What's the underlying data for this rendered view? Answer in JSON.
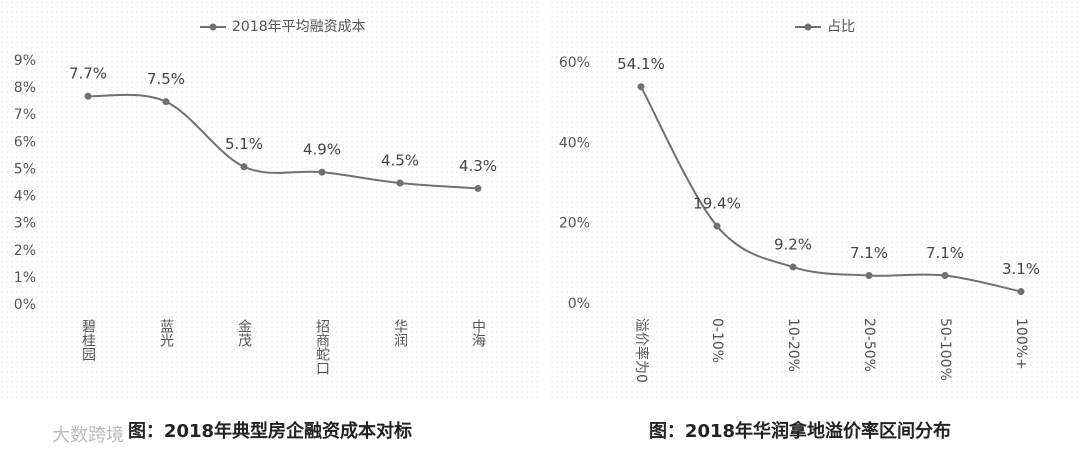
{
  "chart_data": [
    {
      "type": "line",
      "legend_position": "top",
      "categories": [
        "碧桂园",
        "蓝光",
        "金茂",
        "招商蛇口",
        "华润",
        "中海"
      ],
      "series": [
        {
          "name": "2018年平均融资成本",
          "color": "#707070",
          "values": [
            7.7,
            7.5,
            5.1,
            4.9,
            4.5,
            4.3
          ],
          "value_labels": [
            "7.7%",
            "7.5%",
            "5.1%",
            "4.9%",
            "4.5%",
            "4.3%"
          ]
        }
      ],
      "ylim": [
        0,
        9
      ],
      "yticks": [
        {
          "value": 0,
          "label": "0%"
        },
        {
          "value": 1,
          "label": "1%"
        },
        {
          "value": 2,
          "label": "2%"
        },
        {
          "value": 3,
          "label": "3%"
        },
        {
          "value": 4,
          "label": "4%"
        },
        {
          "value": 5,
          "label": "5%"
        },
        {
          "value": 6,
          "label": "6%"
        },
        {
          "value": 7,
          "label": "7%"
        },
        {
          "value": 8,
          "label": "8%"
        },
        {
          "value": 9,
          "label": "9%"
        }
      ],
      "grid": false,
      "caption": "图：2018年典型房企融资成本对标"
    },
    {
      "type": "line",
      "legend_position": "top",
      "categories": [
        "溢价率为0",
        "0-10%",
        "10-20%",
        "20-50%",
        "50-100%",
        "100%+"
      ],
      "series": [
        {
          "name": "占比",
          "color": "#707070",
          "values": [
            54.1,
            19.4,
            9.2,
            7.1,
            7.1,
            3.1
          ],
          "value_labels": [
            "54.1%",
            "19.4%",
            "9.2%",
            "7.1%",
            "7.1%",
            "3.1%"
          ]
        }
      ],
      "ylim": [
        0,
        60
      ],
      "yticks": [
        {
          "value": 0,
          "label": "0%"
        },
        {
          "value": 20,
          "label": "20%"
        },
        {
          "value": 40,
          "label": "40%"
        },
        {
          "value": 60,
          "label": "60%"
        }
      ],
      "grid": false,
      "caption": "图：2018年华润拿地溢价率区间分布"
    }
  ],
  "watermark": "大数跨境"
}
